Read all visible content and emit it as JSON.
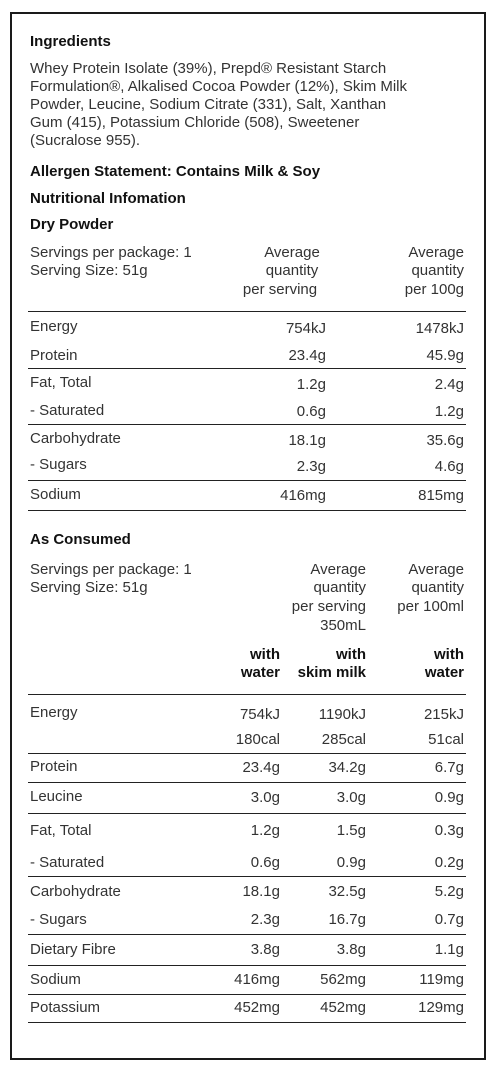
{
  "ingredients": {
    "title": "Ingredients",
    "lines": [
      "Whey Protein Isolate (39%), Prepd® Resistant Starch",
      "Formulation®, Alkalised Cocoa Powder (12%), Skim Milk",
      "Powder, Leucine, Sodium Citrate (331), Salt, Xanthan",
      "Gum (415), Potassium Chloride (508), Sweetener",
      "(Sucralose 955)."
    ]
  },
  "allergen": "Allergen Statement: Contains Milk & Soy",
  "nutrition_title": "Nutritional Infomation",
  "dry": {
    "title": "Dry Powder",
    "servings_per_package": "Servings per package: 1",
    "serving_size": "Serving Size: 51g",
    "col1": [
      "Average",
      "quantity",
      "per serving"
    ],
    "col2": [
      "Average",
      "quantity",
      "per 100g"
    ],
    "rows": [
      {
        "label": "Energy",
        "v1": "754kJ",
        "v2": "1478kJ"
      },
      {
        "label": "Protein",
        "v1": "23.4g",
        "v2": "45.9g"
      },
      {
        "label": "Fat, Total",
        "v1": "1.2g",
        "v2": "2.4g"
      },
      {
        "label": "- Saturated",
        "v1": "0.6g",
        "v2": "1.2g"
      },
      {
        "label": "Carbohydrate",
        "v1": "18.1g",
        "v2": "35.6g"
      },
      {
        "label": "- Sugars",
        "v1": "2.3g",
        "v2": "4.6g"
      },
      {
        "label": "Sodium",
        "v1": "416mg",
        "v2": "815mg"
      }
    ]
  },
  "consumed": {
    "title": "As Consumed",
    "servings_per_package": "Servings per package: 1",
    "serving_size": "Serving Size: 51g",
    "col_serving": [
      "Average",
      "quantity",
      "per serving",
      "350mL"
    ],
    "col_100": [
      "Average",
      "quantity",
      "per 100ml"
    ],
    "sub1": [
      "with",
      "water"
    ],
    "sub2": [
      "with",
      "skim milk"
    ],
    "sub3": [
      "with",
      "water"
    ],
    "energy": {
      "label": "Energy",
      "kj": [
        "754kJ",
        "1190kJ",
        "215kJ"
      ],
      "cal": [
        "180cal",
        "285cal",
        "51cal"
      ]
    },
    "rows": [
      {
        "label": "Protein",
        "v": [
          "23.4g",
          "34.2g",
          "6.7g"
        ]
      },
      {
        "label": "Leucine",
        "v": [
          "3.0g",
          "3.0g",
          "0.9g"
        ]
      },
      {
        "label": "Fat, Total",
        "v": [
          "1.2g",
          "1.5g",
          "0.3g"
        ]
      },
      {
        "label": "- Saturated",
        "v": [
          "0.6g",
          "0.9g",
          "0.2g"
        ]
      },
      {
        "label": "Carbohydrate",
        "v": [
          "18.1g",
          "32.5g",
          "5.2g"
        ]
      },
      {
        "label": "- Sugars",
        "v": [
          "2.3g",
          "16.7g",
          "0.7g"
        ]
      },
      {
        "label": "Dietary Fibre",
        "v": [
          "3.8g",
          "3.8g",
          "1.1g"
        ]
      },
      {
        "label": "Sodium",
        "v": [
          "416mg",
          "562mg",
          "119mg"
        ]
      },
      {
        "label": "Potassium",
        "v": [
          "452mg",
          "452mg",
          "129mg"
        ]
      }
    ]
  }
}
